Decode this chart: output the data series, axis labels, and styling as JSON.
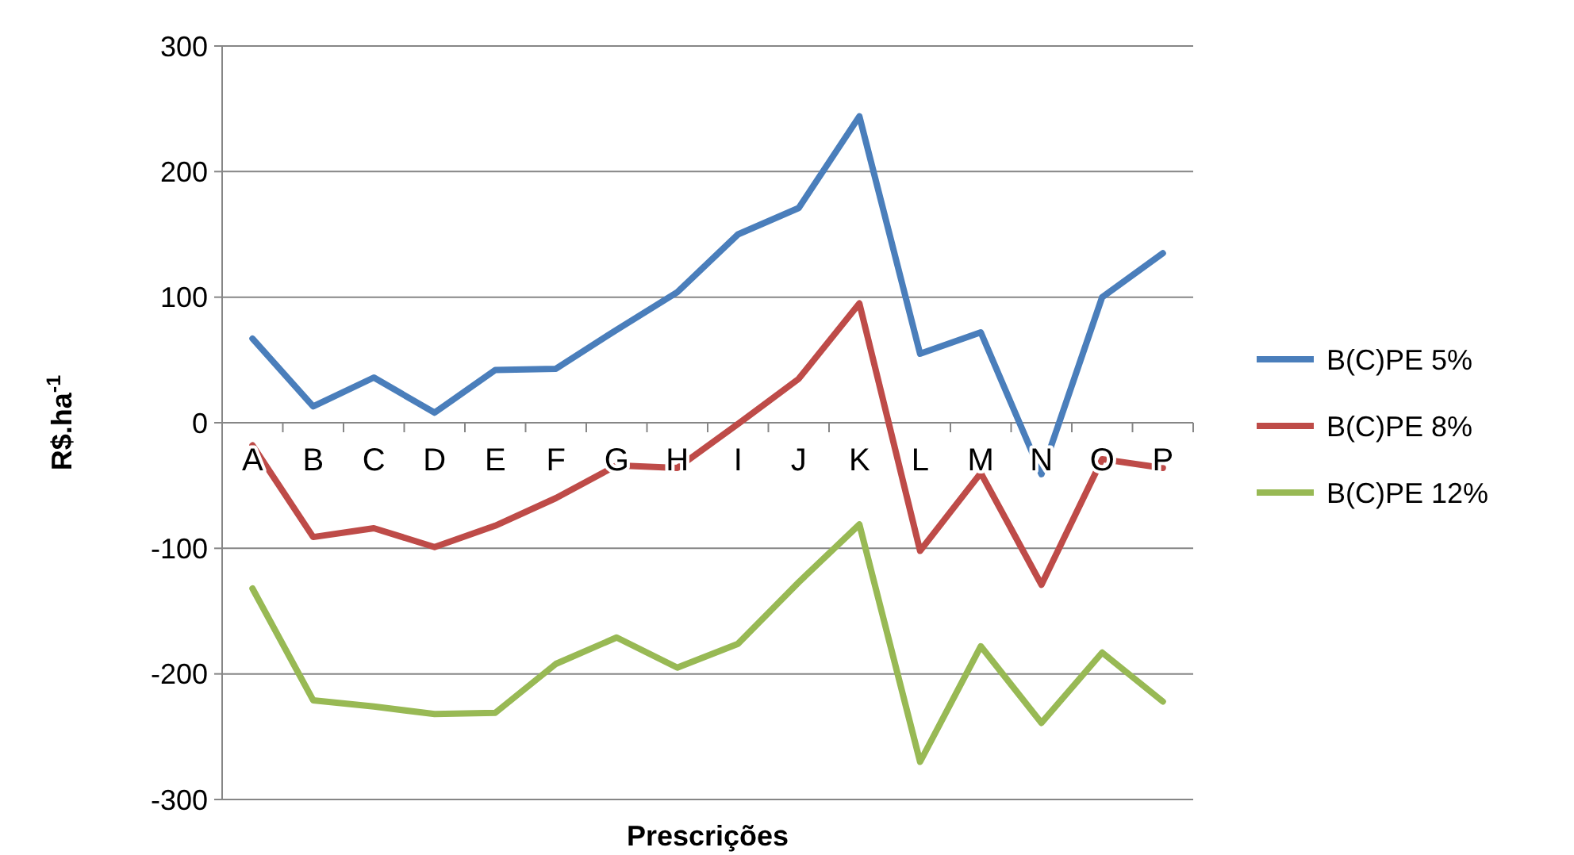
{
  "chart_data": {
    "type": "line",
    "xlabel": "Prescrições",
    "ylabel": "R$.ha$^{-1}$",
    "categories": [
      "A",
      "B",
      "C",
      "D",
      "E",
      "F",
      "G",
      "H",
      "I",
      "J",
      "K",
      "L",
      "M",
      "N",
      "O",
      "P"
    ],
    "series": [
      {
        "name": "B(C)PE 5%",
        "color": "#4a7ebb",
        "values": [
          67,
          13,
          36,
          8,
          42,
          43,
          74,
          104,
          150,
          171,
          244,
          55,
          72,
          -41,
          100,
          135
        ]
      },
      {
        "name": "B(C)PE 8%",
        "color": "#be4b48",
        "values": [
          -18,
          -91,
          -84,
          -99,
          -82,
          -60,
          -34,
          -36,
          -1,
          35,
          95,
          -102,
          -40,
          -129,
          -29,
          -36
        ]
      },
      {
        "name": "B(C)PE 12%",
        "color": "#98b954",
        "values": [
          -132,
          -221,
          -226,
          -232,
          -231,
          -192,
          -171,
          -195,
          -176,
          -127,
          -81,
          -270,
          -178,
          -239,
          -183,
          -222
        ]
      }
    ],
    "ylim": [
      -300,
      300
    ],
    "yticks": [
      -300,
      -200,
      -100,
      0,
      100,
      200,
      300
    ],
    "grid": "y",
    "legend": "right",
    "marker": "none",
    "line_style": "solid"
  }
}
